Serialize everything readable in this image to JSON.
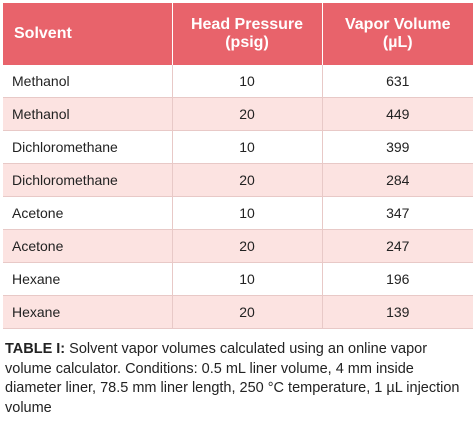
{
  "table": {
    "headers": {
      "solvent": "Solvent",
      "head_pressure_line1": "Head Pressure",
      "head_pressure_line2": "(psig)",
      "vapor_volume_line1": "Vapor Volume",
      "vapor_volume_line2": "(µL)"
    },
    "rows": [
      {
        "solvent": "Methanol",
        "pressure": "10",
        "volume": "631"
      },
      {
        "solvent": "Methanol",
        "pressure": "20",
        "volume": "449"
      },
      {
        "solvent": "Dichloromethane",
        "pressure": "10",
        "volume": "399"
      },
      {
        "solvent": "Dichloromethane",
        "pressure": "20",
        "volume": "284"
      },
      {
        "solvent": "Acetone",
        "pressure": "10",
        "volume": "347"
      },
      {
        "solvent": "Acetone",
        "pressure": "20",
        "volume": "247"
      },
      {
        "solvent": "Hexane",
        "pressure": "10",
        "volume": "196"
      },
      {
        "solvent": "Hexane",
        "pressure": "20",
        "volume": "139"
      }
    ]
  },
  "caption": {
    "label": "TABLE I:",
    "text": " Solvent vapor volumes calculated using an online vapor volume calculator. Conditions: 0.5 mL liner volume, 4 mm inside diameter liner, 78.5 mm liner length, 250 °C temperature, 1 µL injection volume"
  },
  "colors": {
    "header_bg": "#e8636b",
    "stripe_bg": "#fce3e1",
    "grid_line": "#e8c9c7"
  }
}
